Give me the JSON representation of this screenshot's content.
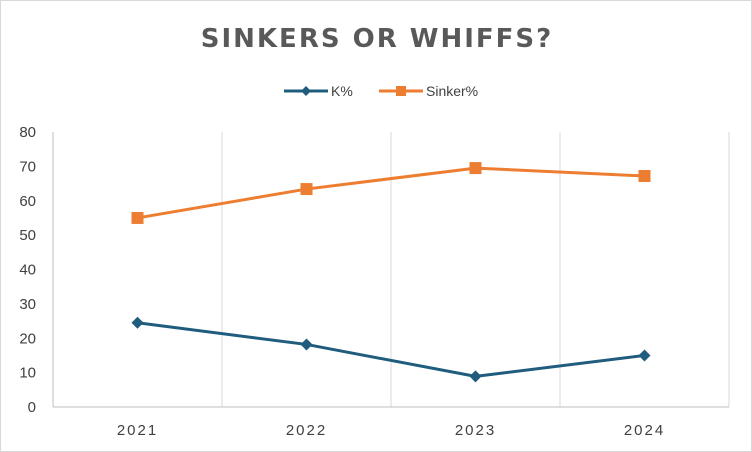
{
  "chart_data": {
    "type": "line",
    "title": "SINKERS OR WHIFFS?",
    "xlabel": "",
    "ylabel": "",
    "categories": [
      "2021",
      "2022",
      "2023",
      "2024"
    ],
    "ylim": [
      0,
      80
    ],
    "yticks": [
      0,
      10,
      20,
      30,
      40,
      50,
      60,
      70,
      80
    ],
    "grid": "vertical",
    "legend": "top-center",
    "series": [
      {
        "name": "K%",
        "color": "#1F5C7E",
        "marker": "diamond",
        "values": [
          24.5,
          18.2,
          8.9,
          15.0
        ]
      },
      {
        "name": "Sinker%",
        "color": "#ED7D31",
        "marker": "square",
        "values": [
          55.0,
          63.4,
          69.5,
          67.2
        ]
      }
    ]
  }
}
